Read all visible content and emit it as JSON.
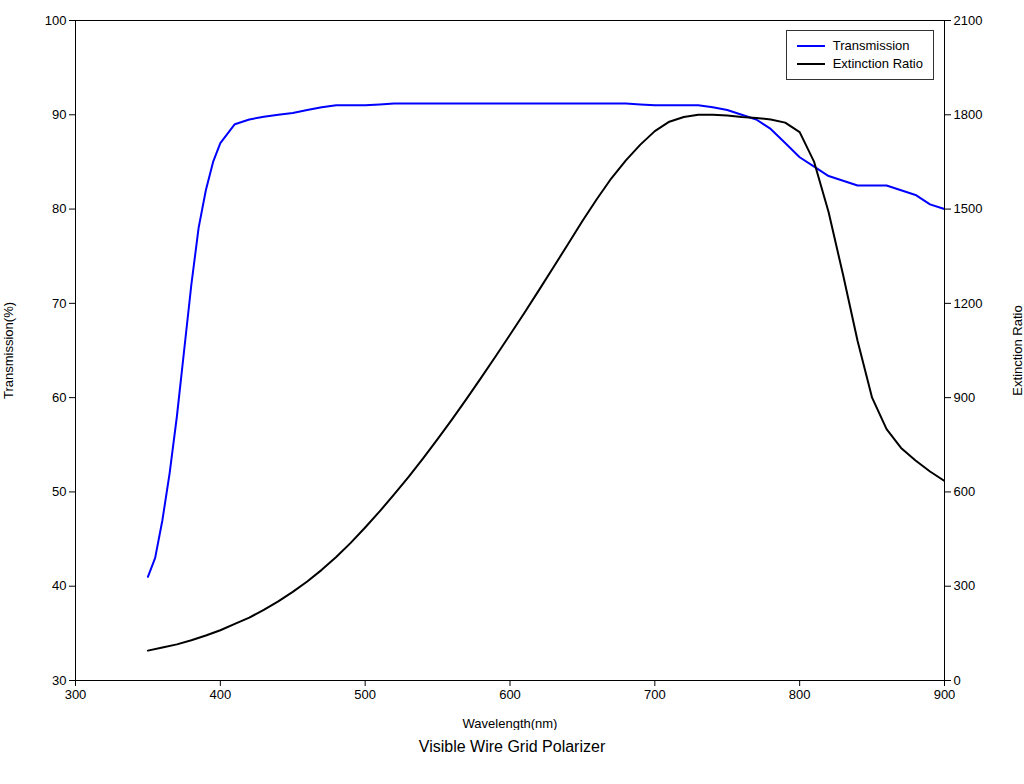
{
  "chart_data": {
    "type": "line",
    "title": "Visible Wire Grid Polarizer",
    "xlabel": "Wavelength(nm)",
    "ylabel": "Transmission(%)",
    "y2label": "Extinction Ratio",
    "xlim": [
      300,
      900
    ],
    "ylim": [
      30,
      100
    ],
    "y2lim": [
      0,
      2100
    ],
    "xticks": [
      300,
      400,
      500,
      600,
      700,
      800,
      900
    ],
    "yticks": [
      30,
      40,
      50,
      60,
      70,
      80,
      90,
      100
    ],
    "y2ticks": [
      0,
      300,
      600,
      900,
      1200,
      1500,
      1800,
      2100
    ],
    "grid": false,
    "legend": "upper right",
    "series": [
      {
        "name": "Transmission",
        "color": "#0000FF",
        "x": [
          350,
          355,
          360,
          365,
          370,
          375,
          380,
          385,
          390,
          395,
          400,
          410,
          420,
          430,
          440,
          450,
          460,
          470,
          480,
          490,
          500,
          510,
          520,
          530,
          540,
          550,
          560,
          570,
          580,
          590,
          600,
          610,
          620,
          630,
          640,
          650,
          660,
          670,
          680,
          690,
          700,
          710,
          720,
          730,
          740,
          750,
          760,
          770,
          780,
          790,
          800,
          810,
          820,
          830,
          840,
          850,
          860,
          870,
          880,
          890,
          900
        ],
        "values": [
          41,
          43,
          47,
          52,
          58,
          65,
          72,
          78,
          82,
          85,
          87,
          89,
          89.5,
          89.8,
          90.0,
          90.2,
          90.5,
          90.8,
          91.0,
          91.0,
          91.0,
          91.1,
          91.2,
          91.2,
          91.2,
          91.2,
          91.2,
          91.2,
          91.2,
          91.2,
          91.2,
          91.2,
          91.2,
          91.2,
          91.2,
          91.2,
          91.2,
          91.2,
          91.2,
          91.1,
          91.0,
          91.0,
          91.0,
          91.0,
          90.8,
          90.5,
          90.0,
          89.5,
          88.5,
          87.0,
          85.5,
          84.5,
          83.5,
          83.0,
          82.5,
          82.5,
          82.5,
          82.0,
          81.5,
          80.5,
          80.0
        ]
      },
      {
        "name": "Extinction Ratio",
        "color": "#000000",
        "axis": "y2",
        "x": [
          350,
          360,
          370,
          380,
          390,
          400,
          410,
          420,
          430,
          440,
          450,
          460,
          470,
          480,
          490,
          500,
          510,
          520,
          530,
          540,
          550,
          560,
          570,
          580,
          590,
          600,
          610,
          620,
          630,
          640,
          650,
          660,
          670,
          680,
          690,
          700,
          710,
          720,
          730,
          740,
          750,
          760,
          770,
          780,
          790,
          800,
          810,
          820,
          830,
          840,
          850,
          860,
          870,
          880,
          890,
          900
        ],
        "values": [
          95,
          105,
          115,
          128,
          143,
          160,
          180,
          200,
          225,
          252,
          282,
          315,
          352,
          393,
          438,
          487,
          538,
          592,
          648,
          707,
          768,
          831,
          896,
          963,
          1031,
          1100,
          1170,
          1242,
          1315,
          1388,
          1462,
          1532,
          1598,
          1655,
          1705,
          1748,
          1778,
          1793,
          1800,
          1800,
          1798,
          1793,
          1790,
          1785,
          1775,
          1745,
          1650,
          1490,
          1290,
          1080,
          900,
          800,
          740,
          700,
          665,
          635
        ]
      }
    ]
  }
}
